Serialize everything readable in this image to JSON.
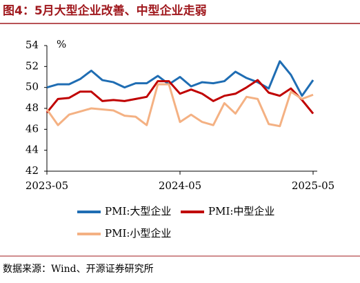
{
  "chart_data": {
    "type": "line",
    "title": "图4：5月大型企业改善、中型企业走弱",
    "y_unit": "%",
    "source": "数据来源：Wind、开源证券研究所",
    "categories": [
      "2023-05",
      null,
      null,
      null,
      null,
      null,
      null,
      null,
      null,
      null,
      null,
      null,
      "2024-05",
      null,
      null,
      null,
      null,
      null,
      null,
      null,
      null,
      null,
      null,
      null,
      "2025-05"
    ],
    "ylim": [
      42,
      54
    ],
    "yticks": [
      42,
      44,
      46,
      48,
      50,
      52,
      54
    ],
    "series": [
      {
        "name": "PMI:大型企业",
        "color": "#1f6db3",
        "values": [
          50.0,
          50.3,
          50.3,
          50.8,
          51.6,
          50.7,
          50.5,
          50.0,
          50.4,
          50.4,
          51.1,
          50.3,
          51.0,
          50.1,
          50.5,
          50.4,
          50.6,
          51.5,
          50.9,
          50.5,
          49.9,
          52.5,
          51.2,
          49.2,
          50.7
        ]
      },
      {
        "name": "PMI:中型企业",
        "color": "#c00000",
        "values": [
          47.6,
          48.9,
          49.0,
          49.6,
          49.6,
          48.7,
          48.8,
          48.7,
          48.9,
          49.1,
          50.6,
          50.6,
          49.4,
          49.8,
          49.4,
          48.7,
          49.2,
          49.4,
          50.0,
          50.7,
          49.5,
          49.2,
          49.9,
          48.8,
          47.5
        ]
      },
      {
        "name": "PMI:小型企业",
        "color": "#f4b183",
        "values": [
          47.9,
          46.4,
          47.4,
          47.7,
          48.0,
          47.9,
          47.8,
          47.3,
          47.2,
          46.4,
          50.3,
          50.3,
          46.7,
          47.4,
          46.7,
          46.4,
          48.5,
          47.5,
          49.1,
          48.9,
          46.5,
          46.3,
          49.6,
          48.9,
          49.3
        ]
      }
    ]
  }
}
